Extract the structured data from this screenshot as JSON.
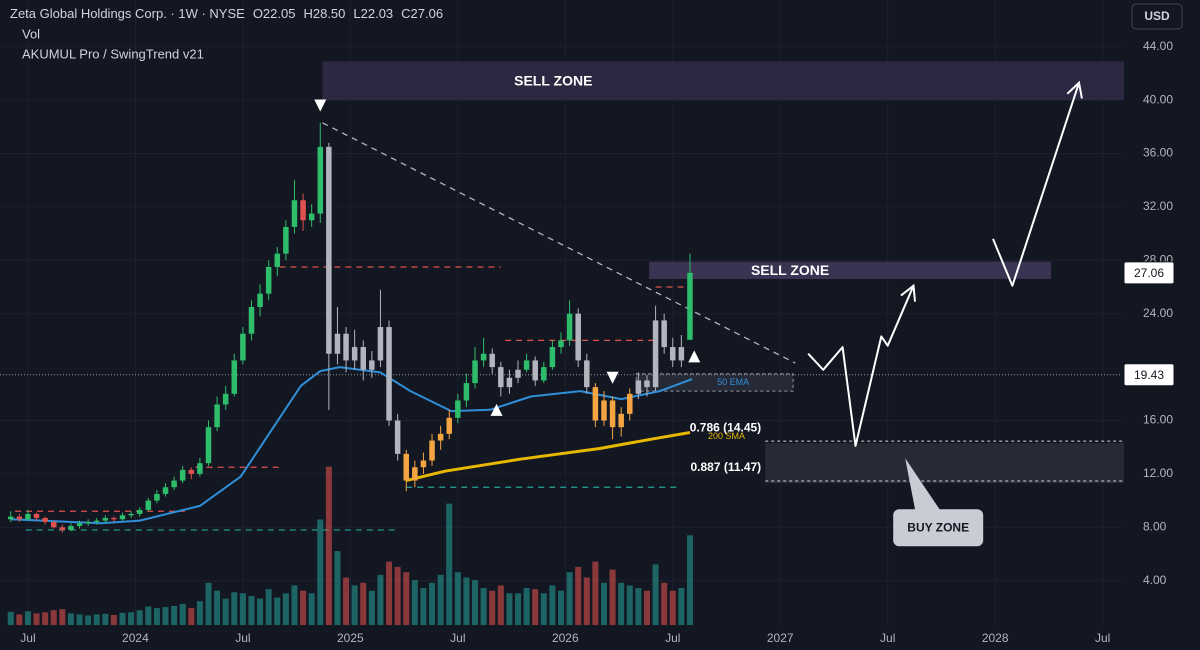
{
  "chart_data": {
    "type": "candlestick",
    "title": "Zeta Global Holdings Corp. · 1W · NYSE",
    "legend_ohlc": [
      "O22.05",
      "H28.50",
      "L22.03",
      "C27.06"
    ],
    "header_lines": [
      "Vol",
      "AKUMUL Pro / SwingTrend v21"
    ],
    "currency": "USD",
    "grid": true,
    "xlim": [
      2023.37,
      2028.59
    ],
    "ylim": [
      0.68,
      47.5
    ],
    "volume_lim": [
      0,
      36
    ],
    "xticks": [
      {
        "value": 2023.5,
        "label": "Jul"
      },
      2024,
      {
        "value": 2024.5,
        "label": "Jul"
      },
      2025,
      {
        "value": 2025.5,
        "label": "Jul"
      },
      2026,
      {
        "value": 2026.5,
        "label": "Jul"
      },
      2027,
      {
        "value": 2027.5,
        "label": "Jul"
      },
      2028,
      {
        "value": 2028.5,
        "label": "Jul"
      }
    ],
    "yticks": [
      {
        "value": 4,
        "label": "4.00"
      },
      {
        "value": 8,
        "label": "8.00"
      },
      {
        "value": 12,
        "label": "12.00"
      },
      {
        "value": 16,
        "label": "16.00"
      },
      {
        "value": 24,
        "label": "24.00"
      },
      {
        "value": 28,
        "label": "28.00"
      },
      {
        "value": 32,
        "label": "32.00"
      },
      {
        "value": 36,
        "label": "36.00"
      },
      {
        "value": 40,
        "label": "40.00"
      },
      {
        "value": 44,
        "label": "44.00"
      }
    ],
    "x": [
      2023.42,
      2023.46,
      2023.5,
      2023.54,
      2023.58,
      2023.62,
      2023.66,
      2023.7,
      2023.74,
      2023.78,
      2023.82,
      2023.86,
      2023.9,
      2023.94,
      2023.98,
      2024.02,
      2024.06,
      2024.1,
      2024.14,
      2024.18,
      2024.22,
      2024.26,
      2024.3,
      2024.34,
      2024.38,
      2024.42,
      2024.46,
      2024.5,
      2024.54,
      2024.58,
      2024.62,
      2024.66,
      2024.7,
      2024.74,
      2024.78,
      2024.82,
      2024.86,
      2024.9,
      2024.94,
      2024.98,
      2025.02,
      2025.06,
      2025.1,
      2025.14,
      2025.18,
      2025.22,
      2025.26,
      2025.3,
      2025.34,
      2025.38,
      2025.42,
      2025.46,
      2025.5,
      2025.54,
      2025.58,
      2025.62,
      2025.66,
      2025.7,
      2025.74,
      2025.78,
      2025.82,
      2025.86,
      2025.9,
      2025.94,
      2025.98,
      2026.02,
      2026.06,
      2026.1,
      2026.14,
      2026.18,
      2026.22,
      2026.26,
      2026.3,
      2026.34,
      2026.38,
      2026.42,
      2026.46,
      2026.5,
      2026.54,
      2026.58
    ],
    "candles": [
      [
        8.6,
        9.2,
        8.4,
        8.8
      ],
      [
        8.8,
        9.0,
        8.4,
        8.6
      ],
      [
        8.6,
        9.3,
        8.5,
        9.0
      ],
      [
        9.0,
        9.1,
        8.5,
        8.7
      ],
      [
        8.7,
        8.8,
        8.2,
        8.4
      ],
      [
        8.4,
        8.5,
        7.9,
        8.0
      ],
      [
        8.0,
        8.2,
        7.6,
        7.8
      ],
      [
        7.8,
        8.3,
        7.7,
        8.1
      ],
      [
        8.1,
        8.5,
        7.9,
        8.3
      ],
      [
        8.3,
        8.6,
        8.1,
        8.4
      ],
      [
        8.4,
        8.7,
        8.2,
        8.5
      ],
      [
        8.5,
        8.9,
        8.3,
        8.7
      ],
      [
        8.7,
        8.8,
        8.4,
        8.6
      ],
      [
        8.6,
        9.1,
        8.5,
        8.9
      ],
      [
        8.9,
        9.2,
        8.7,
        9.0
      ],
      [
        9.0,
        9.5,
        8.8,
        9.3
      ],
      [
        9.3,
        10.2,
        9.2,
        10.0
      ],
      [
        10.0,
        10.8,
        9.8,
        10.5
      ],
      [
        10.5,
        11.3,
        10.3,
        11.0
      ],
      [
        11.0,
        11.8,
        10.8,
        11.5
      ],
      [
        11.5,
        12.6,
        11.3,
        12.3
      ],
      [
        12.3,
        12.5,
        11.6,
        12.0
      ],
      [
        12.0,
        13.2,
        11.8,
        12.8
      ],
      [
        12.8,
        16.0,
        12.6,
        15.5
      ],
      [
        15.5,
        17.8,
        15.2,
        17.2
      ],
      [
        17.2,
        18.6,
        16.8,
        18.0
      ],
      [
        18.0,
        21.0,
        17.8,
        20.5
      ],
      [
        20.5,
        23.0,
        20.2,
        22.5
      ],
      [
        22.5,
        25.0,
        22.0,
        24.5
      ],
      [
        24.5,
        26.2,
        23.8,
        25.5
      ],
      [
        25.5,
        28.0,
        25.0,
        27.5
      ],
      [
        27.5,
        29.0,
        26.8,
        28.5
      ],
      [
        28.5,
        31.0,
        28.0,
        30.5
      ],
      [
        30.5,
        34.0,
        30.0,
        32.5
      ],
      [
        32.5,
        33.0,
        30.2,
        31.0
      ],
      [
        31.0,
        32.2,
        30.5,
        31.5
      ],
      [
        31.5,
        38.3,
        30.8,
        36.5
      ],
      [
        36.5,
        36.8,
        16.8,
        21.0
      ],
      [
        21.0,
        24.5,
        20.2,
        22.5
      ],
      [
        22.5,
        23.0,
        19.6,
        20.5
      ],
      [
        20.5,
        22.8,
        19.8,
        21.5
      ],
      [
        21.5,
        22.0,
        19.0,
        19.8
      ],
      [
        19.8,
        21.2,
        19.2,
        20.5
      ],
      [
        20.5,
        25.8,
        20.0,
        23.0
      ],
      [
        23.0,
        23.5,
        15.6,
        16.0
      ],
      [
        16.0,
        16.5,
        13.0,
        13.5
      ],
      [
        13.5,
        13.8,
        10.7,
        11.5
      ],
      [
        11.5,
        13.0,
        11.0,
        12.5
      ],
      [
        12.5,
        13.6,
        12.0,
        13.0
      ],
      [
        13.0,
        15.0,
        12.6,
        14.5
      ],
      [
        14.5,
        15.6,
        13.8,
        15.0
      ],
      [
        15.0,
        16.8,
        14.6,
        16.2
      ],
      [
        16.2,
        18.0,
        15.8,
        17.5
      ],
      [
        17.5,
        19.5,
        17.0,
        18.8
      ],
      [
        18.8,
        21.5,
        18.4,
        20.5
      ],
      [
        20.5,
        22.2,
        20.0,
        21.0
      ],
      [
        21.0,
        21.4,
        19.5,
        20.0
      ],
      [
        20.0,
        20.4,
        17.8,
        18.5
      ],
      [
        18.5,
        19.8,
        18.0,
        19.2
      ],
      [
        19.2,
        20.5,
        18.8,
        19.8
      ],
      [
        19.8,
        21.0,
        19.6,
        20.5
      ],
      [
        20.5,
        20.8,
        18.6,
        19.0
      ],
      [
        19.0,
        20.4,
        18.8,
        20.0
      ],
      [
        20.0,
        22.0,
        19.8,
        21.5
      ],
      [
        21.5,
        22.6,
        21.0,
        22.0
      ],
      [
        22.0,
        25.0,
        21.6,
        24.0
      ],
      [
        24.0,
        24.4,
        20.0,
        20.5
      ],
      [
        20.5,
        21.0,
        18.0,
        18.5
      ],
      [
        18.5,
        18.8,
        15.5,
        16.0
      ],
      [
        16.0,
        18.2,
        15.6,
        17.5
      ],
      [
        17.5,
        17.8,
        14.6,
        15.5
      ],
      [
        15.5,
        17.0,
        14.8,
        16.5
      ],
      [
        16.5,
        18.4,
        16.0,
        18.0
      ],
      [
        18.0,
        19.6,
        17.6,
        19.0
      ],
      [
        19.0,
        19.4,
        17.8,
        18.5
      ],
      [
        18.5,
        24.6,
        18.2,
        23.5
      ],
      [
        23.5,
        24.0,
        21.0,
        21.5
      ],
      [
        21.5,
        22.2,
        20.0,
        20.5
      ],
      [
        20.5,
        22.4,
        20.0,
        21.5
      ],
      [
        22.05,
        28.5,
        22.03,
        27.06
      ]
    ],
    "candle_colors": [
      "#2ebd6b",
      "#e0524f",
      "#2ebd6b",
      "#e0524f",
      "#e0524f",
      "#e0524f",
      "#e0524f",
      "#2ebd6b",
      "#2ebd6b",
      "#2ebd6b",
      "#2ebd6b",
      "#2ebd6b",
      "#e0524f",
      "#2ebd6b",
      "#2ebd6b",
      "#2ebd6b",
      "#2ebd6b",
      "#2ebd6b",
      "#2ebd6b",
      "#2ebd6b",
      "#2ebd6b",
      "#e0524f",
      "#2ebd6b",
      "#2ebd6b",
      "#2ebd6b",
      "#2ebd6b",
      "#2ebd6b",
      "#2ebd6b",
      "#2ebd6b",
      "#2ebd6b",
      "#2ebd6b",
      "#2ebd6b",
      "#2ebd6b",
      "#2ebd6b",
      "#e0524f",
      "#2ebd6b",
      "#2ebd6b",
      "#b2b5be",
      "#b2b5be",
      "#b2b5be",
      "#b2b5be",
      "#b2b5be",
      "#b2b5be",
      "#b2b5be",
      "#b2b5be",
      "#b2b5be",
      "#f5a442",
      "#f5a442",
      "#f5a442",
      "#f5a442",
      "#f5a442",
      "#f5a442",
      "#2ebd6b",
      "#2ebd6b",
      "#2ebd6b",
      "#2ebd6b",
      "#b2b5be",
      "#b2b5be",
      "#b2b5be",
      "#b2b5be",
      "#2ebd6b",
      "#b2b5be",
      "#2ebd6b",
      "#2ebd6b",
      "#2ebd6b",
      "#2ebd6b",
      "#b2b5be",
      "#b2b5be",
      "#f5a442",
      "#f5a442",
      "#f5a442",
      "#f5a442",
      "#f5a442",
      "#b2b5be",
      "#b2b5be",
      "#b2b5be",
      "#b2b5be",
      "#b2b5be",
      "#b2b5be",
      "#2ebd6b"
    ],
    "volume": [
      2.5,
      2.0,
      2.6,
      2.2,
      2.4,
      2.8,
      3.0,
      2.2,
      2.0,
      1.8,
      2.0,
      2.1,
      1.9,
      2.3,
      2.4,
      2.8,
      3.5,
      3.2,
      3.4,
      3.6,
      4.0,
      3.2,
      4.5,
      8.0,
      6.5,
      5.0,
      6.2,
      6.0,
      5.5,
      5.0,
      6.8,
      5.2,
      6.0,
      7.5,
      6.5,
      6.0,
      20.0,
      30.0,
      14.0,
      9.0,
      7.5,
      8.0,
      6.5,
      9.5,
      12.0,
      11.0,
      10.0,
      8.5,
      7.0,
      8.0,
      9.5,
      23.0,
      10.0,
      9.0,
      8.5,
      7.0,
      6.5,
      7.5,
      6.0,
      6.0,
      7.0,
      6.8,
      6.0,
      7.5,
      6.5,
      10.0,
      11.0,
      9.0,
      12.0,
      8.0,
      10.5,
      8.0,
      7.5,
      7.0,
      6.5,
      11.5,
      8.0,
      6.5,
      7.0,
      17.0
    ],
    "volume_colors": {
      "up": "#26a69a",
      "down": "#ef5350"
    },
    "ema50": {
      "name": "50 EMA",
      "color": "#2f8fd8",
      "x": [
        2023.42,
        2023.84,
        2024.02,
        2024.3,
        2024.49,
        2024.63,
        2024.77,
        2024.86,
        2024.95,
        2025.14,
        2025.28,
        2025.47,
        2025.65,
        2025.84,
        2026.07,
        2026.26,
        2026.44,
        2026.59
      ],
      "values": [
        8.6,
        8.3,
        8.5,
        9.6,
        11.8,
        15.2,
        18.6,
        19.7,
        20.0,
        19.6,
        18.2,
        16.7,
        16.8,
        17.8,
        18.2,
        17.6,
        18.2,
        19.1
      ]
    },
    "sma200": {
      "name": "200 SMA",
      "color": "#e6b800",
      "x": [
        2025.26,
        2025.44,
        2025.79,
        2026.16,
        2026.4,
        2026.58
      ],
      "values": [
        11.5,
        12.2,
        13.1,
        13.9,
        14.6,
        15.1
      ]
    },
    "ema_box": {
      "x": [
        2026.33,
        2027.06
      ],
      "y": [
        18.2,
        19.5
      ]
    },
    "levels": [
      {
        "value": 9.2,
        "x": [
          2023.44,
          2024.23
        ],
        "color": "#e0524f"
      },
      {
        "value": 12.5,
        "x": [
          2024.28,
          2024.67
        ],
        "color": "#e0524f"
      },
      {
        "value": 27.5,
        "x": [
          2024.67,
          2025.7
        ],
        "color": "#e0524f"
      },
      {
        "value": 22.0,
        "x": [
          2025.72,
          2026.42
        ],
        "color": "#e0524f"
      },
      {
        "value": 26.0,
        "x": [
          2026.42,
          2026.58
        ],
        "color": "#e0524f"
      },
      {
        "value": 7.8,
        "x": [
          2023.49,
          2025.23
        ],
        "color": "#26a69a"
      },
      {
        "value": 11.0,
        "x": [
          2025.26,
          2026.53
        ],
        "color": "#26a69a"
      }
    ],
    "trendline": {
      "x": [
        2024.87,
        2027.07
      ],
      "y": [
        38.3,
        20.3
      ]
    },
    "zones": [
      {
        "label": "SELL ZONE",
        "x": [
          2024.87,
          2028.6
        ],
        "y": [
          40.0,
          42.9
        ],
        "color": "#2d2842"
      },
      {
        "label": "SELL ZONE",
        "x": [
          2026.39,
          2028.26
        ],
        "y": [
          26.6,
          27.9
        ],
        "color": "#3a3352"
      },
      {
        "label": "BUY ZONE",
        "x": [
          2026.93,
          2028.6
        ],
        "y": [
          11.3,
          14.3
        ],
        "color": "#262a35"
      }
    ],
    "fib_levels": [
      {
        "label": "0.786 (14.45)",
        "value": 14.45,
        "x": [
          2026.93,
          2028.6
        ]
      },
      {
        "label": "0.887 (11.47)",
        "value": 11.47,
        "x": [
          2026.93,
          2028.6
        ]
      }
    ],
    "signals": [
      {
        "x": 2024.86,
        "y": 39.6,
        "direction": "down"
      },
      {
        "x": 2025.68,
        "y": 16.8,
        "direction": "up"
      },
      {
        "x": 2026.22,
        "y": 19.2,
        "direction": "down"
      },
      {
        "x": 2026.6,
        "y": 20.8,
        "direction": "up"
      }
    ],
    "projections": [
      {
        "x": [
          2027.13,
          2027.2,
          2027.29,
          2027.35,
          2027.47,
          2027.5,
          2027.62
        ],
        "y": [
          21.0,
          19.8,
          21.5,
          14.1,
          22.3,
          21.6,
          26.1
        ]
      },
      {
        "x": [
          2027.99,
          2028.08,
          2028.39
        ],
        "y": [
          29.6,
          26.1,
          41.3
        ]
      }
    ],
    "price_labels": [
      {
        "value": 27.06,
        "line": false
      },
      {
        "value": 19.43,
        "line": true
      }
    ]
  }
}
